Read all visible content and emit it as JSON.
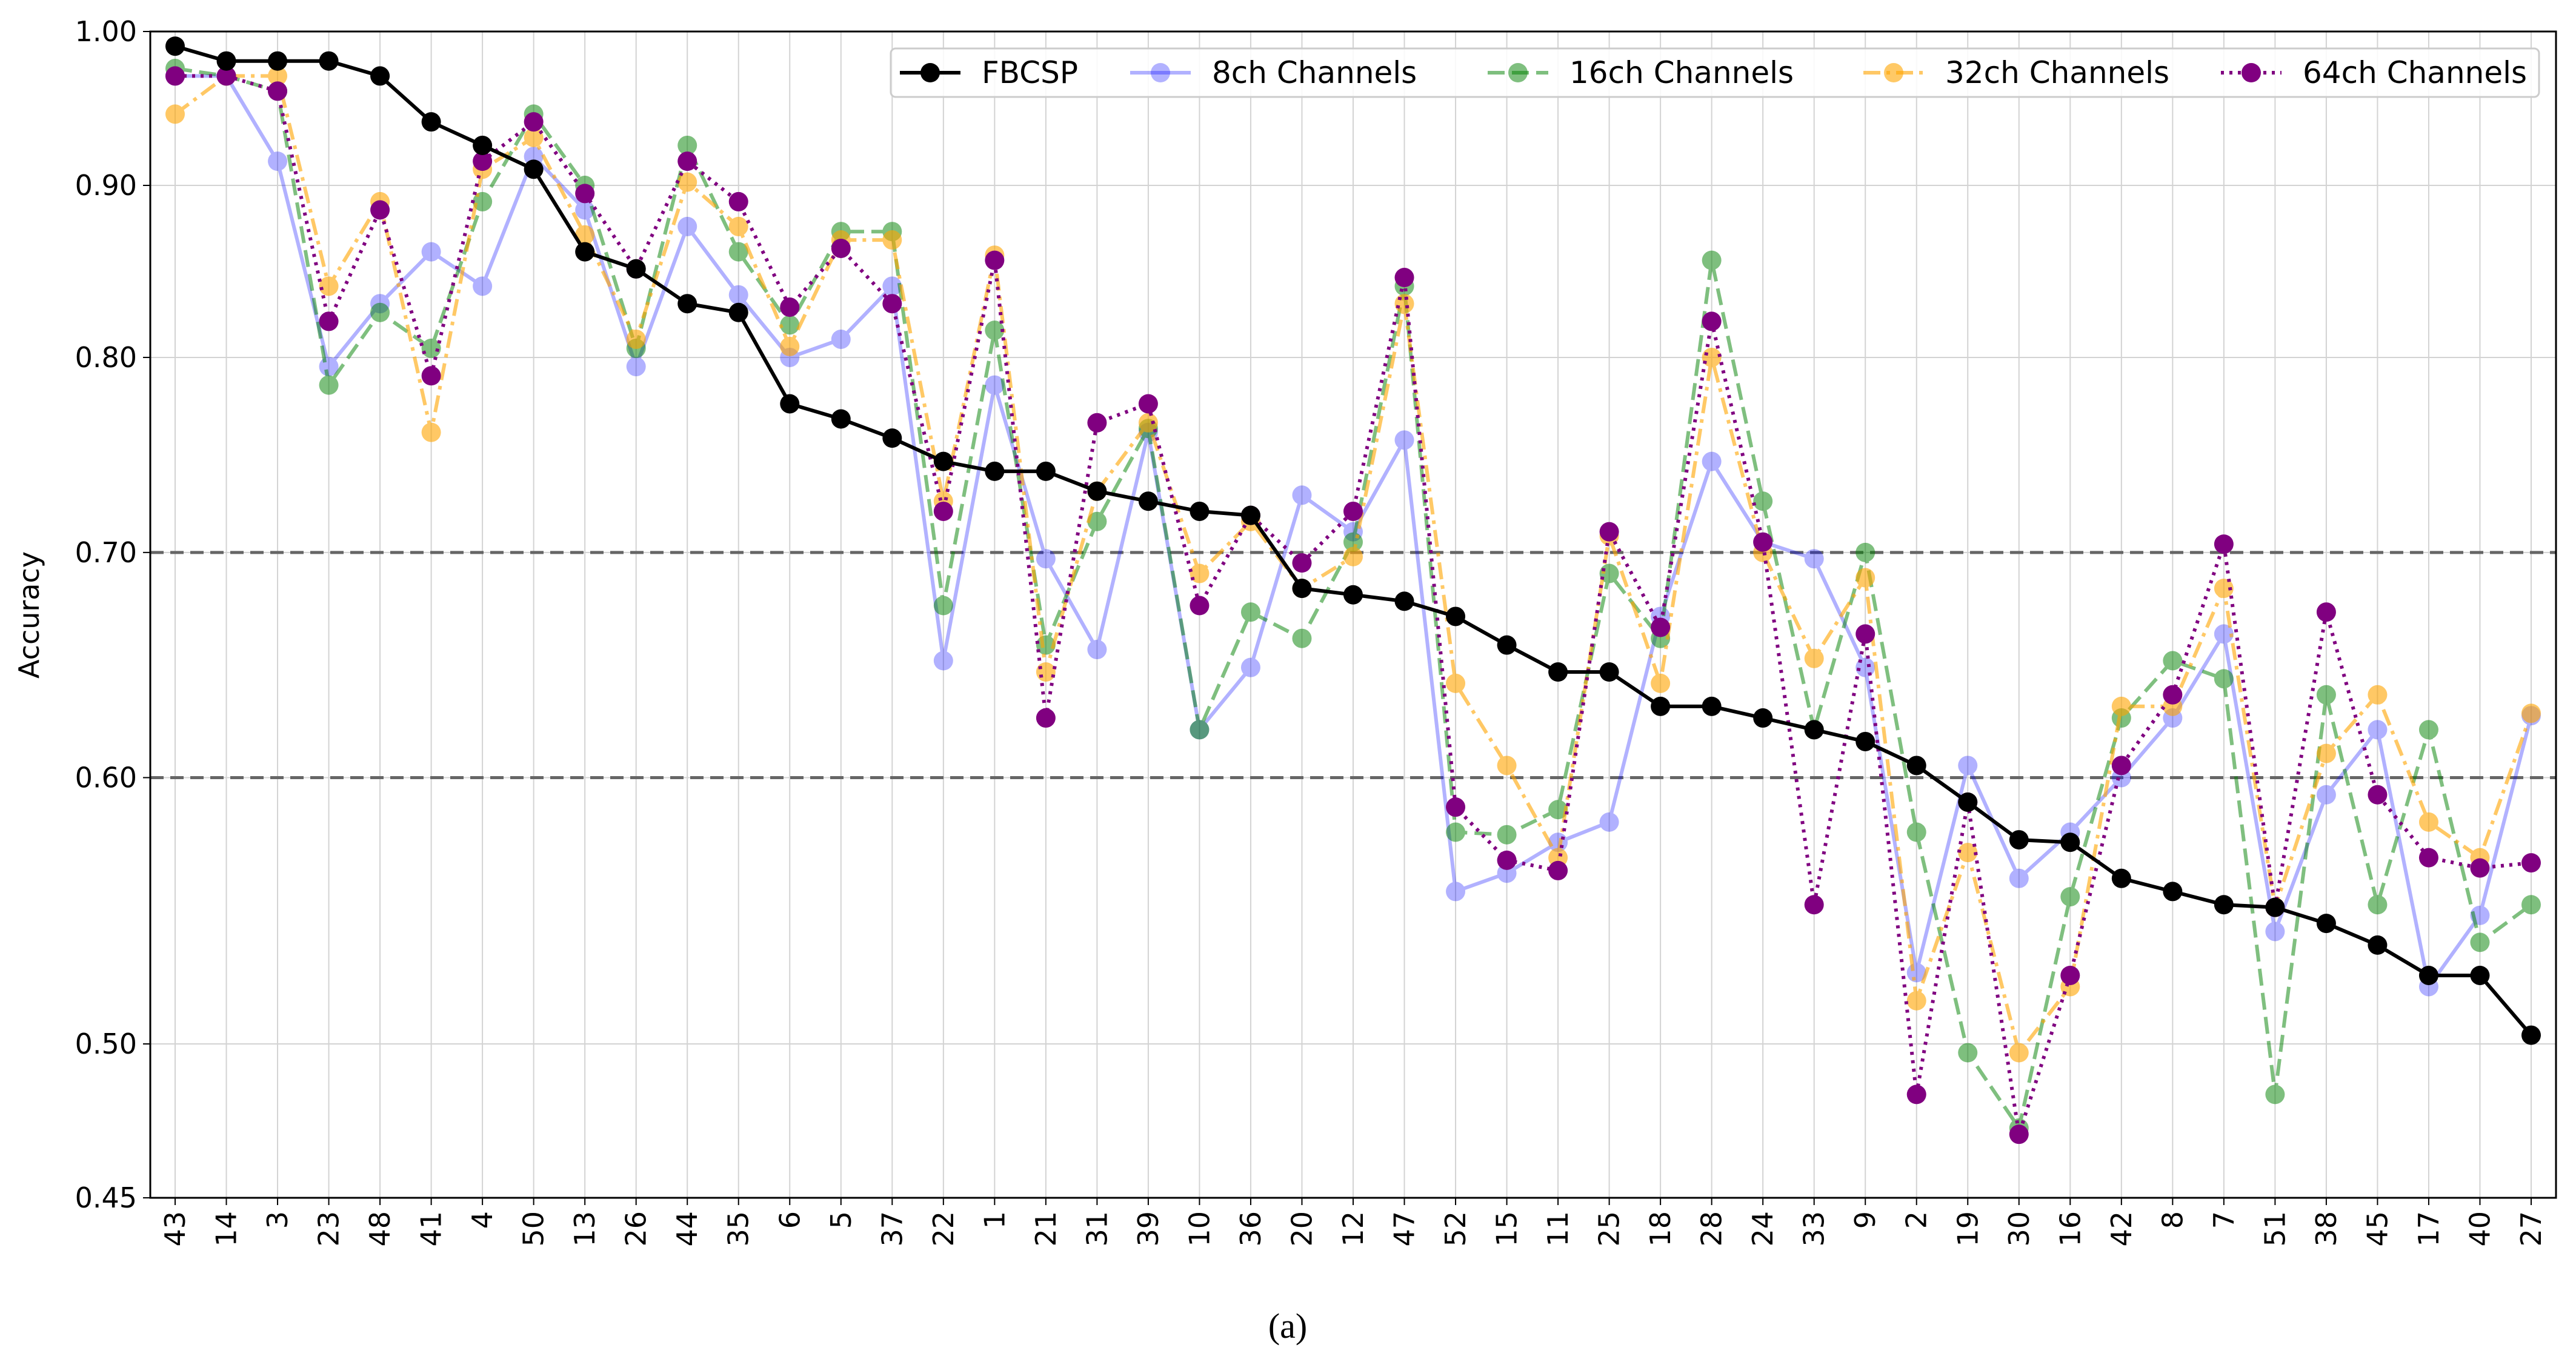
{
  "caption": "(a)",
  "chart_data": {
    "type": "line",
    "title": "",
    "xlabel": "",
    "ylabel": "Accuracy",
    "ylim": [
      0.45,
      1.0
    ],
    "y_scale": "log",
    "y_ticks": [
      0.45,
      0.5,
      0.6,
      0.7,
      0.8,
      0.9,
      1.0
    ],
    "y_tick_labels": [
      "0.45",
      "0.50",
      "0.60",
      "0.70",
      "0.80",
      "0.90",
      "1.00"
    ],
    "reference_lines": [
      0.7,
      0.6
    ],
    "legend_position": "top-right",
    "grid": true,
    "categories": [
      "43",
      "14",
      "3",
      "23",
      "48",
      "41",
      "4",
      "50",
      "13",
      "26",
      "44",
      "35",
      "6",
      "5",
      "37",
      "22",
      "1",
      "21",
      "31",
      "39",
      "10",
      "36",
      "20",
      "12",
      "47",
      "52",
      "15",
      "11",
      "25",
      "18",
      "28",
      "24",
      "33",
      "9",
      "2",
      "19",
      "30",
      "16",
      "42",
      "8",
      "7",
      "51",
      "38",
      "45",
      "17",
      "40",
      "27"
    ],
    "series": [
      {
        "name": "FBCSP",
        "color": "#000000",
        "dash": "solid",
        "opacity": 1.0,
        "values": [
          0.99,
          0.98,
          0.98,
          0.98,
          0.97,
          0.94,
          0.925,
          0.91,
          0.86,
          0.85,
          0.83,
          0.825,
          0.775,
          0.767,
          0.757,
          0.745,
          0.74,
          0.74,
          0.73,
          0.725,
          0.72,
          0.718,
          0.683,
          0.68,
          0.677,
          0.67,
          0.657,
          0.645,
          0.645,
          0.63,
          0.63,
          0.625,
          0.62,
          0.615,
          0.605,
          0.59,
          0.575,
          0.574,
          0.56,
          0.555,
          0.55,
          0.549,
          0.543,
          0.535,
          0.524,
          0.524,
          0.503
        ]
      },
      {
        "name": "8ch Channels",
        "color": "#0000ff",
        "dash": "solid",
        "opacity": 0.3,
        "values": [
          0.97,
          0.97,
          0.915,
          0.795,
          0.83,
          0.86,
          0.84,
          0.918,
          0.885,
          0.795,
          0.875,
          0.835,
          0.8,
          0.81,
          0.84,
          0.65,
          0.785,
          0.697,
          0.655,
          0.76,
          0.62,
          0.647,
          0.728,
          0.71,
          0.756,
          0.555,
          0.562,
          0.574,
          0.582,
          0.67,
          0.745,
          0.705,
          0.697,
          0.647,
          0.525,
          0.605,
          0.56,
          0.578,
          0.6,
          0.625,
          0.662,
          0.54,
          0.593,
          0.62,
          0.52,
          0.546,
          0.626
        ]
      },
      {
        "name": "16ch Channels",
        "color": "#008000",
        "dash": "dashed",
        "opacity": 0.5,
        "values": [
          0.975,
          0.97,
          0.96,
          0.785,
          0.825,
          0.805,
          0.89,
          0.945,
          0.9,
          0.805,
          0.925,
          0.86,
          0.818,
          0.872,
          0.872,
          0.675,
          0.815,
          0.657,
          0.715,
          0.762,
          0.62,
          0.672,
          0.66,
          0.705,
          0.84,
          0.578,
          0.577,
          0.587,
          0.69,
          0.66,
          0.855,
          0.725,
          0.62,
          0.7,
          0.578,
          0.497,
          0.472,
          0.553,
          0.625,
          0.65,
          0.642,
          0.483,
          0.635,
          0.55,
          0.62,
          0.536,
          0.55
        ]
      },
      {
        "name": "32ch Channels",
        "color": "#ffa500",
        "dash": "dashdot",
        "opacity": 0.6,
        "values": [
          0.945,
          0.97,
          0.97,
          0.84,
          0.89,
          0.76,
          0.91,
          0.93,
          0.87,
          0.81,
          0.902,
          0.875,
          0.806,
          0.867,
          0.867,
          0.725,
          0.858,
          0.645,
          0.73,
          0.765,
          0.69,
          0.715,
          0.683,
          0.698,
          0.83,
          0.64,
          0.605,
          0.568,
          0.708,
          0.64,
          0.8,
          0.7,
          0.651,
          0.688,
          0.515,
          0.57,
          0.497,
          0.52,
          0.63,
          0.63,
          0.683,
          0.549,
          0.61,
          0.635,
          0.582,
          0.568,
          0.627
        ]
      },
      {
        "name": "64ch Channels",
        "color": "#800080",
        "dash": "dotted",
        "opacity": 1.0,
        "values": [
          0.97,
          0.97,
          0.96,
          0.82,
          0.885,
          0.79,
          0.915,
          0.94,
          0.895,
          0.85,
          0.915,
          0.89,
          0.828,
          0.862,
          0.83,
          0.72,
          0.855,
          0.625,
          0.765,
          0.775,
          0.675,
          0.718,
          0.695,
          0.72,
          0.845,
          0.588,
          0.567,
          0.563,
          0.71,
          0.665,
          0.82,
          0.705,
          0.55,
          0.662,
          0.483,
          0.59,
          0.47,
          0.524,
          0.605,
          0.635,
          0.704,
          0.549,
          0.672,
          0.593,
          0.568,
          0.564,
          0.566
        ]
      }
    ]
  }
}
